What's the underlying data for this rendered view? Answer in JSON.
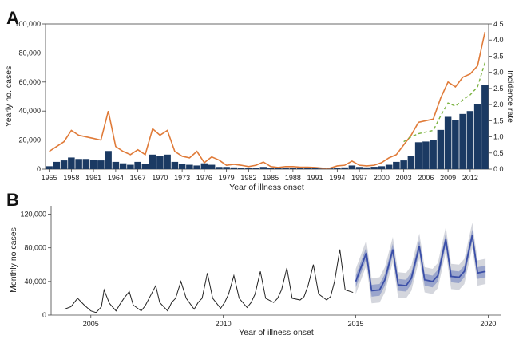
{
  "chart_data": [
    {
      "panel_label": "A",
      "type": "bar",
      "xlabel": "Year of illness onset",
      "ylabel": "Yearly no. cases",
      "ylabel_right": "Incidence rate",
      "ylim": [
        0,
        100000
      ],
      "ylim_right": [
        0,
        4.5
      ],
      "yticks": [
        "0",
        "20,000",
        "40,000",
        "60,000",
        "80,000",
        "100,000"
      ],
      "yticks_right": [
        "0.0",
        "0.5",
        "1.0",
        "1.5",
        "2.0",
        "2.5",
        "3.0",
        "3.5",
        "4.0",
        "4.5"
      ],
      "xticks": [
        "1955",
        "1958",
        "1961",
        "1964",
        "1967",
        "1970",
        "1973",
        "1976",
        "1979",
        "1982",
        "1985",
        "1988",
        "1991",
        "1994",
        "1997",
        "2000",
        "2003",
        "2006",
        "2009",
        "2012"
      ],
      "grid": false,
      "colors": {
        "bars": "#1b3a63",
        "rate_line": "#e07b39",
        "rate_dashed": "#7cb342"
      },
      "x": [
        1955,
        1956,
        1957,
        1958,
        1959,
        1960,
        1961,
        1962,
        1963,
        1964,
        1965,
        1966,
        1967,
        1968,
        1969,
        1970,
        1971,
        1972,
        1973,
        1974,
        1975,
        1976,
        1977,
        1978,
        1979,
        1980,
        1981,
        1982,
        1983,
        1984,
        1985,
        1986,
        1987,
        1988,
        1989,
        1990,
        1991,
        1992,
        1993,
        1994,
        1995,
        1996,
        1997,
        1998,
        1999,
        2000,
        2001,
        2002,
        2003,
        2004,
        2005,
        2006,
        2007,
        2008,
        2009,
        2010,
        2011,
        2012,
        2013,
        2014
      ],
      "series": [
        {
          "type": "bar",
          "values": [
            2000,
            5000,
            6000,
            8000,
            7000,
            7000,
            6500,
            6000,
            12500,
            5000,
            4000,
            3000,
            5000,
            3500,
            10000,
            9000,
            10000,
            5000,
            3500,
            3000,
            2500,
            4000,
            3000,
            1500,
            1500,
            1200,
            1000,
            800,
            1000,
            1500,
            800,
            700,
            800,
            900,
            800,
            800,
            600,
            500,
            500,
            800,
            1200,
            2500,
            1500,
            1200,
            1600,
            2000,
            3000,
            5000,
            6000,
            9000,
            18500,
            19000,
            20000,
            27000,
            36000,
            34000,
            38000,
            40000,
            45000,
            58000
          ]
        },
        {
          "type": "line",
          "axis": "right",
          "values": [
            0.55,
            0.7,
            0.85,
            1.2,
            1.05,
            1.0,
            0.95,
            0.9,
            1.8,
            0.7,
            0.55,
            0.45,
            0.6,
            0.45,
            1.25,
            1.05,
            1.2,
            0.55,
            0.4,
            0.35,
            0.55,
            0.2,
            0.38,
            0.28,
            0.12,
            0.15,
            0.12,
            0.08,
            0.12,
            0.22,
            0.08,
            0.05,
            0.08,
            0.08,
            0.06,
            0.06,
            0.05,
            0.03,
            0.03,
            0.1,
            0.12,
            0.25,
            0.12,
            0.1,
            0.12,
            0.2,
            0.35,
            0.45,
            0.75,
            1.05,
            1.45,
            1.5,
            1.55,
            2.2,
            2.7,
            2.55,
            2.85,
            2.95,
            3.2,
            4.25
          ]
        },
        {
          "type": "line",
          "axis": "right",
          "style": "dashed",
          "values": [
            null,
            null,
            null,
            null,
            null,
            null,
            null,
            null,
            null,
            null,
            null,
            null,
            null,
            null,
            null,
            null,
            null,
            null,
            null,
            null,
            null,
            null,
            null,
            null,
            null,
            null,
            null,
            null,
            null,
            null,
            null,
            null,
            null,
            null,
            null,
            null,
            null,
            null,
            null,
            null,
            null,
            null,
            null,
            null,
            null,
            null,
            null,
            null,
            0.85,
            1.0,
            1.1,
            1.15,
            1.2,
            1.65,
            2.05,
            1.95,
            2.15,
            2.3,
            2.55,
            3.3
          ]
        }
      ]
    },
    {
      "panel_label": "B",
      "type": "line",
      "xlabel": "Year of illness onset",
      "ylabel": "Monthly no cases",
      "ylim": [
        0,
        130000
      ],
      "xlim": [
        2003.5,
        2020.5
      ],
      "yticks": [
        "0",
        "40,000",
        "80,000",
        "120,000"
      ],
      "xticks": [
        "2005",
        "2010",
        "2015",
        "2020"
      ],
      "grid": false,
      "colors": {
        "observed": "#222222",
        "forecast": "#3b4fa8",
        "band_inner": "#9aa5cc",
        "band_outer": "#d4d6dd"
      },
      "series": [
        {
          "name": "observed",
          "x": [
            2004.0,
            2004.25,
            2004.5,
            2004.75,
            2005.0,
            2005.2,
            2005.4,
            2005.5,
            2005.7,
            2005.95,
            2006.1,
            2006.25,
            2006.45,
            2006.6,
            2006.9,
            2007.05,
            2007.2,
            2007.45,
            2007.6,
            2007.9,
            2008.05,
            2008.2,
            2008.4,
            2008.6,
            2008.9,
            2009.05,
            2009.2,
            2009.4,
            2009.6,
            2009.9,
            2010.05,
            2010.2,
            2010.4,
            2010.6,
            2010.9,
            2011.05,
            2011.2,
            2011.4,
            2011.6,
            2011.9,
            2012.05,
            2012.2,
            2012.4,
            2012.6,
            2012.9,
            2013.05,
            2013.2,
            2013.4,
            2013.6,
            2013.9,
            2014.05,
            2014.2,
            2014.4,
            2014.6,
            2014.9
          ],
          "values": [
            7000,
            10000,
            20000,
            12000,
            5000,
            3000,
            10000,
            30000,
            14000,
            5000,
            13000,
            20000,
            28000,
            12000,
            5000,
            11000,
            20000,
            35000,
            15000,
            5000,
            15000,
            20000,
            40000,
            20000,
            7000,
            15000,
            20000,
            50000,
            20000,
            8000,
            15000,
            25000,
            47000,
            20000,
            9000,
            15000,
            25000,
            52000,
            20000,
            15000,
            20000,
            30000,
            56000,
            20000,
            18000,
            22000,
            35000,
            60000,
            25000,
            18000,
            22000,
            40000,
            78000,
            30000,
            27000
          ]
        },
        {
          "name": "forecast",
          "x": [
            2015.0,
            2015.4,
            2015.6,
            2015.9,
            2016.1,
            2016.4,
            2016.6,
            2016.9,
            2017.1,
            2017.4,
            2017.6,
            2017.9,
            2018.1,
            2018.4,
            2018.6,
            2018.9,
            2019.1,
            2019.4,
            2019.6,
            2019.9
          ],
          "values": [
            40000,
            74000,
            29000,
            30000,
            42000,
            78000,
            36000,
            35000,
            44000,
            82000,
            42000,
            40000,
            47000,
            90000,
            46000,
            45000,
            52000,
            95000,
            50000,
            52000
          ],
          "band_inner_halfwidth": 7000,
          "band_outer_halfwidth": 15000
        }
      ]
    }
  ]
}
